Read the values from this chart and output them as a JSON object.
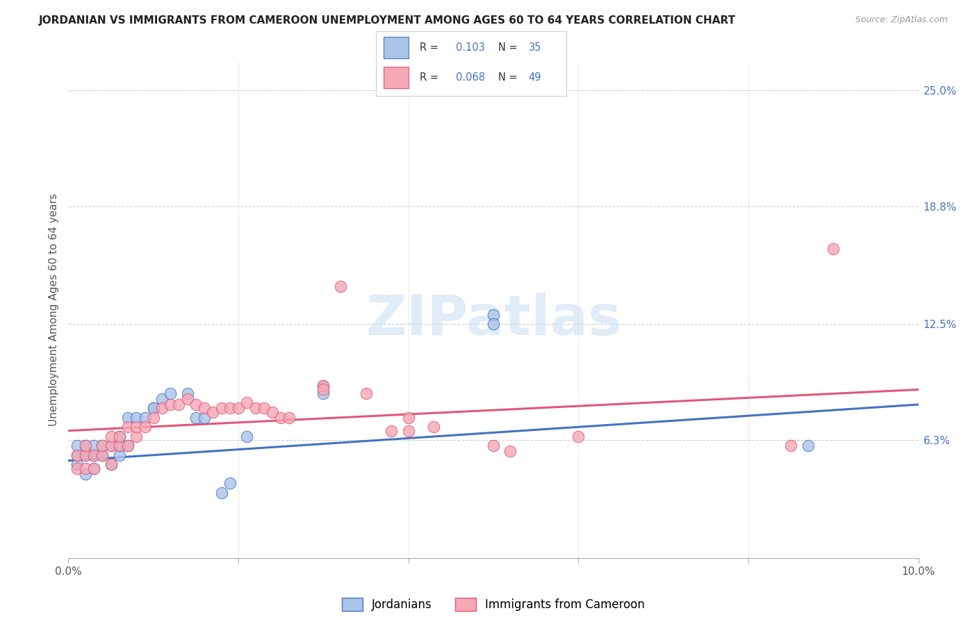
{
  "title": "JORDANIAN VS IMMIGRANTS FROM CAMEROON UNEMPLOYMENT AMONG AGES 60 TO 64 YEARS CORRELATION CHART",
  "source": "Source: ZipAtlas.com",
  "ylabel": "Unemployment Among Ages 60 to 64 years",
  "xlim": [
    0.0,
    0.1
  ],
  "ylim": [
    0.0,
    0.265
  ],
  "ytick_values": [
    0.063,
    0.125,
    0.188,
    0.25
  ],
  "ytick_labels": [
    "6.3%",
    "12.5%",
    "18.8%",
    "25.0%"
  ],
  "legend_label1": "Jordanians",
  "legend_label2": "Immigrants from Cameroon",
  "r1": "0.103",
  "n1": "35",
  "r2": "0.068",
  "n2": "49",
  "color1": "#aac4e8",
  "color2": "#f4a7b5",
  "line_color1": "#4472c4",
  "line_color2": "#e05878",
  "watermark": "ZIPatlas",
  "background": "#ffffff",
  "grid_color": "#cccccc",
  "blue_intercept": 0.052,
  "blue_slope": 0.3,
  "pink_intercept": 0.068,
  "pink_slope": 0.22,
  "blue_x": [
    0.001,
    0.001,
    0.001,
    0.002,
    0.002,
    0.002,
    0.003,
    0.003,
    0.003,
    0.004,
    0.004,
    0.005,
    0.005,
    0.006,
    0.006,
    0.006,
    0.007,
    0.007,
    0.008,
    0.009,
    0.01,
    0.01,
    0.011,
    0.012,
    0.014,
    0.015,
    0.016,
    0.018,
    0.019,
    0.021,
    0.03,
    0.03,
    0.05,
    0.05,
    0.087
  ],
  "blue_y": [
    0.05,
    0.055,
    0.06,
    0.045,
    0.055,
    0.06,
    0.048,
    0.055,
    0.06,
    0.055,
    0.06,
    0.05,
    0.06,
    0.055,
    0.06,
    0.065,
    0.06,
    0.075,
    0.075,
    0.075,
    0.08,
    0.08,
    0.085,
    0.088,
    0.088,
    0.075,
    0.075,
    0.035,
    0.04,
    0.065,
    0.092,
    0.088,
    0.13,
    0.125,
    0.06
  ],
  "pink_x": [
    0.001,
    0.001,
    0.002,
    0.002,
    0.002,
    0.003,
    0.003,
    0.004,
    0.004,
    0.005,
    0.005,
    0.005,
    0.006,
    0.006,
    0.007,
    0.007,
    0.008,
    0.008,
    0.009,
    0.01,
    0.011,
    0.012,
    0.013,
    0.014,
    0.015,
    0.016,
    0.017,
    0.018,
    0.019,
    0.02,
    0.021,
    0.022,
    0.023,
    0.024,
    0.025,
    0.026,
    0.03,
    0.03,
    0.032,
    0.035,
    0.038,
    0.04,
    0.04,
    0.043,
    0.05,
    0.052,
    0.06,
    0.085,
    0.09
  ],
  "pink_y": [
    0.048,
    0.055,
    0.048,
    0.055,
    0.06,
    0.048,
    0.055,
    0.055,
    0.06,
    0.05,
    0.06,
    0.065,
    0.06,
    0.065,
    0.06,
    0.07,
    0.065,
    0.07,
    0.07,
    0.075,
    0.08,
    0.082,
    0.082,
    0.085,
    0.082,
    0.08,
    0.078,
    0.08,
    0.08,
    0.08,
    0.083,
    0.08,
    0.08,
    0.078,
    0.075,
    0.075,
    0.092,
    0.09,
    0.145,
    0.088,
    0.068,
    0.068,
    0.075,
    0.07,
    0.06,
    0.057,
    0.065,
    0.06,
    0.165
  ]
}
